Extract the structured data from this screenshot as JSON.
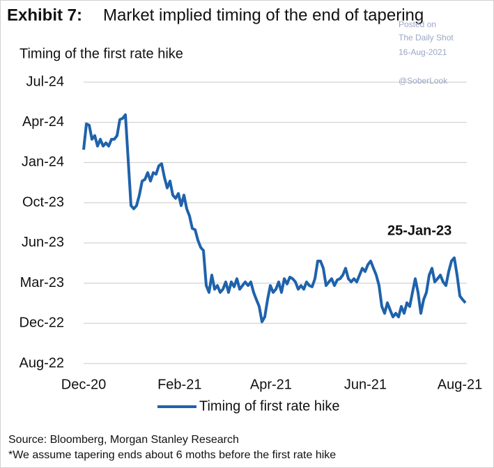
{
  "chart_data": {
    "type": "line",
    "exhibit": "Exhibit 7:",
    "title": "Market implied timing of the end of tapering",
    "subtitle": "Timing of the first rate hike",
    "watermark": [
      "Posted on",
      "The Daily Shot",
      "16-Aug-2021",
      "@SoberLook"
    ],
    "annotation": "25-Jan-23",
    "source": "Source: Bloomberg, Morgan Stanley Research",
    "footnote": "*We assume tapering ends about 6 moths before the first rate hike",
    "legend": "bottom",
    "grid": true,
    "xlim": [
      0,
      252
    ],
    "xticks": [
      {
        "value": 0,
        "label": "Dec-20"
      },
      {
        "value": 62,
        "label": "Feb-21"
      },
      {
        "value": 121,
        "label": "Apr-21"
      },
      {
        "value": 182,
        "label": "Jun-21"
      },
      {
        "value": 243,
        "label": "Aug-21"
      }
    ],
    "ylim": [
      0,
      7
    ],
    "yticks": [
      {
        "value": 0,
        "label": "Aug-22"
      },
      {
        "value": 1,
        "label": "Dec-22"
      },
      {
        "value": 2,
        "label": "Mar-23"
      },
      {
        "value": 3,
        "label": "Jun-23"
      },
      {
        "value": 4,
        "label": "Oct-23"
      },
      {
        "value": 5,
        "label": "Jan-24"
      },
      {
        "value": 6,
        "label": "Apr-24"
      },
      {
        "value": 7,
        "label": "Jul-24"
      }
    ],
    "x": [
      0,
      1.8,
      3.6,
      5.4,
      7.2,
      9,
      10.8,
      12.6,
      14.4,
      16.2,
      18,
      19.8,
      21.6,
      23.4,
      25.2,
      27,
      28.8,
      30.6,
      32.4,
      34.2,
      36,
      37.8,
      39.6,
      41.4,
      43.2,
      45,
      46.8,
      48.6,
      50.4,
      52.2,
      54,
      55.8,
      57.6,
      59.4,
      61.2,
      63,
      64.8,
      66.6,
      68.4,
      70.2,
      72,
      73.8,
      75.6,
      77.4,
      79.2,
      81,
      82.8,
      84.6,
      86.4,
      88.2,
      90,
      91.8,
      93.6,
      95.4,
      97.2,
      99,
      100.8,
      102.6,
      104.4,
      106.2,
      108,
      109.8,
      111.6,
      113.4,
      115.2,
      117,
      118.8,
      120.6,
      122.4,
      124.2,
      126,
      127.8,
      129.6,
      131.4,
      133.2,
      135,
      136.8,
      138.6,
      140.4,
      142.2,
      144,
      145.8,
      147.6,
      149.4,
      151.2,
      153,
      154.8,
      156.6,
      158.4,
      160.2,
      162,
      163.8,
      165.6,
      167.4,
      169.2,
      171,
      172.8,
      174.6,
      176.4,
      178.2,
      180,
      181.8,
      183.6,
      185.4,
      187.2,
      189,
      190.8,
      192.6,
      194.4,
      196.2,
      198,
      199.8,
      201.6,
      203.4,
      205.2,
      207,
      208.8,
      210.6,
      212.4,
      214.2,
      216,
      217.8,
      219.6,
      221.4,
      223.2,
      225,
      226.8,
      228.6,
      230.4,
      232.2,
      234,
      235.8,
      237.6,
      239.4,
      241.2,
      243,
      244.8,
      246.6
    ],
    "series": [
      {
        "name": "Timing of first rate hike",
        "color": "#1f62ab",
        "values": [
          5.32,
          5.96,
          5.93,
          5.58,
          5.67,
          5.41,
          5.58,
          5.41,
          5.49,
          5.41,
          5.58,
          5.58,
          5.67,
          6.07,
          6.1,
          6.19,
          5.06,
          3.93,
          3.85,
          3.93,
          4.19,
          4.54,
          4.58,
          4.75,
          4.54,
          4.75,
          4.71,
          4.92,
          4.97,
          4.63,
          4.37,
          4.54,
          4.19,
          4.11,
          4.23,
          3.93,
          4.19,
          3.85,
          3.67,
          3.36,
          3.33,
          3.07,
          2.89,
          2.81,
          1.94,
          1.77,
          2.2,
          1.85,
          1.94,
          1.77,
          1.85,
          2.03,
          1.77,
          2.03,
          1.91,
          2.11,
          1.85,
          1.94,
          2.03,
          1.94,
          2.03,
          1.77,
          1.59,
          1.42,
          1.04,
          1.16,
          1.59,
          1.94,
          1.77,
          1.85,
          2.03,
          1.77,
          2.11,
          1.98,
          2.15,
          2.11,
          2.03,
          1.85,
          1.94,
          1.85,
          2.03,
          1.94,
          1.91,
          2.11,
          2.55,
          2.55,
          2.37,
          1.94,
          2.03,
          2.11,
          1.94,
          2.08,
          2.11,
          2.2,
          2.37,
          2.11,
          2.03,
          2.11,
          2.03,
          2.2,
          2.37,
          2.29,
          2.46,
          2.55,
          2.37,
          2.2,
          1.94,
          1.42,
          1.25,
          1.51,
          1.33,
          1.16,
          1.25,
          1.16,
          1.42,
          1.25,
          1.51,
          1.42,
          1.77,
          2.11,
          1.77,
          1.25,
          1.59,
          1.77,
          2.2,
          2.37,
          2.03,
          2.11,
          2.2,
          2.03,
          1.94,
          2.29,
          2.55,
          2.63,
          2.2,
          1.68,
          1.59,
          1.51
        ]
      }
    ]
  }
}
